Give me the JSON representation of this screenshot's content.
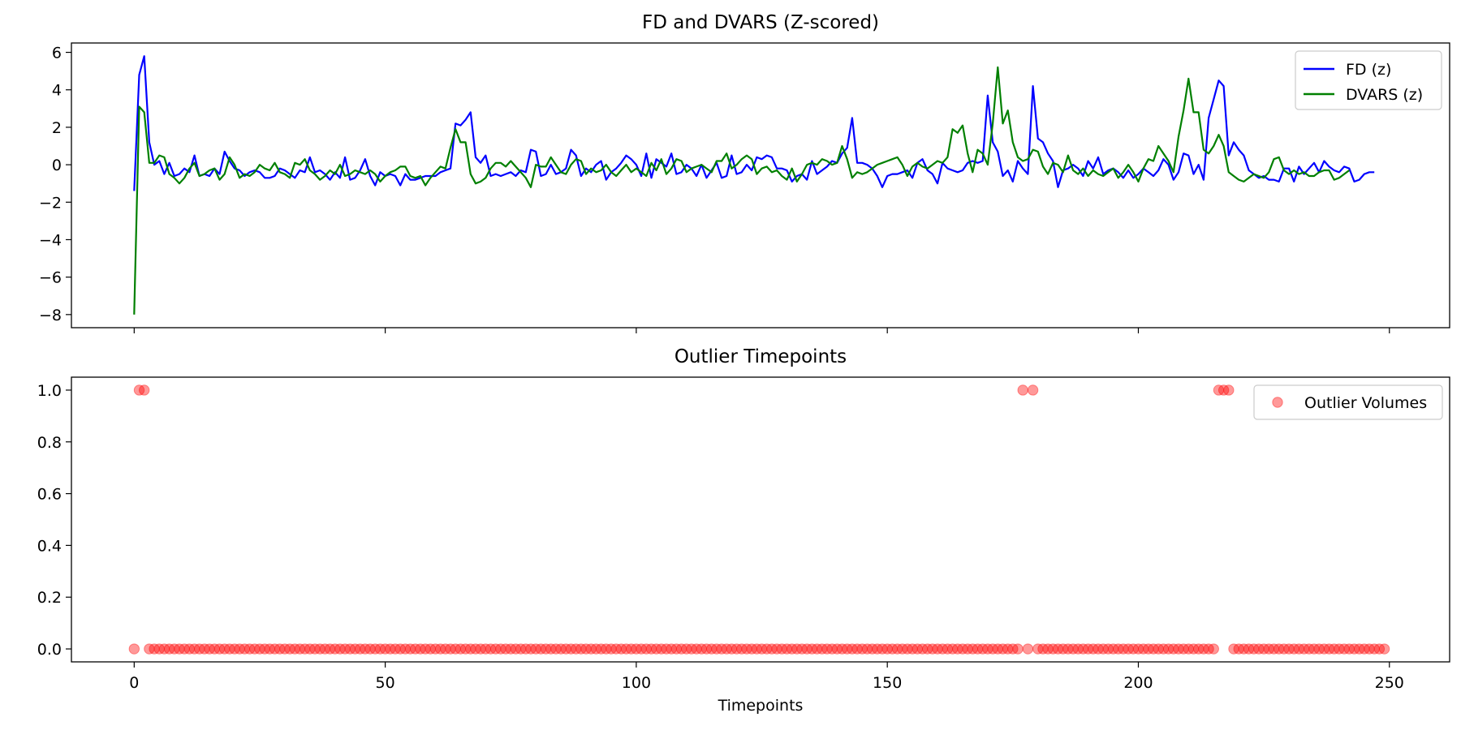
{
  "chart_data": [
    {
      "type": "line",
      "title": "FD and DVARS (Z-scored)",
      "xlabel": "",
      "ylabel": "",
      "xlim": [
        -12.5,
        262
      ],
      "ylim": [
        -8.7,
        6.5
      ],
      "yticks": [
        -8,
        -6,
        -4,
        -2,
        0,
        2,
        4,
        6
      ],
      "ytick_labels": [
        "−8",
        "−6",
        "−4",
        "−2",
        "0",
        "2",
        "4",
        "6"
      ],
      "xticks": [
        0,
        50,
        100,
        150,
        200,
        250
      ],
      "legend_position": "top-right",
      "x_start": 0,
      "x_step": 1,
      "series": [
        {
          "name": "FD (z)",
          "color": "#0000ff",
          "values": [
            -1.4,
            4.8,
            5.8,
            1.2,
            0.0,
            0.2,
            -0.5,
            0.1,
            -0.6,
            -0.5,
            -0.2,
            -0.4,
            0.5,
            -0.6,
            -0.5,
            -0.6,
            -0.2,
            -0.5,
            0.7,
            0.2,
            -0.2,
            -0.3,
            -0.6,
            -0.4,
            -0.3,
            -0.4,
            -0.7,
            -0.7,
            -0.6,
            -0.2,
            -0.3,
            -0.5,
            -0.7,
            -0.3,
            -0.4,
            0.4,
            -0.4,
            -0.3,
            -0.5,
            -0.8,
            -0.4,
            -0.7,
            0.4,
            -0.8,
            -0.7,
            -0.3,
            0.3,
            -0.6,
            -1.1,
            -0.4,
            -0.6,
            -0.5,
            -0.6,
            -1.1,
            -0.5,
            -0.8,
            -0.8,
            -0.7,
            -0.6,
            -0.6,
            -0.6,
            -0.4,
            -0.3,
            -0.2,
            2.2,
            2.1,
            2.4,
            2.8,
            0.4,
            0.1,
            0.5,
            -0.6,
            -0.5,
            -0.6,
            -0.5,
            -0.4,
            -0.6,
            -0.3,
            -0.4,
            0.8,
            0.7,
            -0.6,
            -0.5,
            0.0,
            -0.5,
            -0.4,
            -0.2,
            0.8,
            0.5,
            -0.6,
            -0.2,
            -0.4,
            0.0,
            0.2,
            -0.8,
            -0.4,
            -0.2,
            0.1,
            0.5,
            0.3,
            0.0,
            -0.6,
            0.6,
            -0.7,
            0.3,
            0.1,
            -0.1,
            0.6,
            -0.5,
            -0.4,
            0.0,
            -0.2,
            -0.6,
            0.0,
            -0.7,
            -0.3,
            0.1,
            -0.7,
            -0.6,
            0.5,
            -0.5,
            -0.4,
            0.0,
            -0.3,
            0.4,
            0.3,
            0.5,
            0.4,
            -0.2,
            -0.2,
            -0.3,
            -0.9,
            -0.6,
            -0.5,
            -0.8,
            0.2,
            -0.5,
            -0.3,
            -0.1,
            0.2,
            0.1,
            0.6,
            0.9,
            2.5,
            0.1,
            0.1,
            0.0,
            -0.2,
            -0.6,
            -1.2,
            -0.6,
            -0.5,
            -0.5,
            -0.4,
            -0.3,
            -0.7,
            0.1,
            0.3,
            -0.3,
            -0.5,
            -1.0,
            0.1,
            -0.2,
            -0.3,
            -0.4,
            -0.3,
            0.1,
            0.2,
            0.1,
            0.2,
            3.7,
            1.2,
            0.7,
            -0.6,
            -0.3,
            -0.9,
            0.2,
            -0.2,
            -0.5,
            4.2,
            1.4,
            1.2,
            0.6,
            0.2,
            -1.2,
            -0.3,
            -0.2,
            0.0,
            -0.2,
            -0.6,
            0.2,
            -0.2,
            0.4,
            -0.5,
            -0.3,
            -0.2,
            -0.4,
            -0.7,
            -0.3,
            -0.7,
            -0.5,
            -0.2,
            -0.4,
            -0.6,
            -0.3,
            0.3,
            0.0,
            -0.8,
            -0.4,
            0.6,
            0.5,
            -0.5,
            0.0,
            -0.8,
            2.5,
            3.5,
            4.5,
            4.2,
            0.5,
            1.2,
            0.8,
            0.5,
            -0.3,
            -0.5,
            -0.7,
            -0.6,
            -0.8,
            -0.8,
            -0.9,
            -0.2,
            -0.2,
            -0.9,
            -0.1,
            -0.5,
            -0.2,
            0.1,
            -0.4,
            0.2,
            -0.1,
            -0.3,
            -0.4,
            -0.1,
            -0.2,
            -0.9,
            -0.8,
            -0.5,
            -0.4,
            -0.4
          ],
          "display_values": "z-scored FD per timepoint"
        },
        {
          "name": "DVARS (z)",
          "color": "#008000",
          "values": [
            -8.0,
            3.1,
            2.8,
            0.1,
            0.1,
            0.5,
            0.4,
            -0.5,
            -0.7,
            -1.0,
            -0.7,
            -0.2,
            0.1,
            -0.6,
            -0.5,
            -0.3,
            -0.2,
            -0.8,
            -0.5,
            0.4,
            0.0,
            -0.7,
            -0.5,
            -0.6,
            -0.4,
            0.0,
            -0.2,
            -0.3,
            0.1,
            -0.4,
            -0.5,
            -0.7,
            0.1,
            0.0,
            0.3,
            -0.3,
            -0.5,
            -0.8,
            -0.6,
            -0.3,
            -0.5,
            0.0,
            -0.6,
            -0.5,
            -0.3,
            -0.4,
            -0.5,
            -0.3,
            -0.5,
            -0.9,
            -0.6,
            -0.4,
            -0.3,
            -0.1,
            -0.1,
            -0.6,
            -0.7,
            -0.6,
            -1.1,
            -0.7,
            -0.4,
            -0.1,
            -0.2,
            0.9,
            1.9,
            1.2,
            1.2,
            -0.5,
            -1.0,
            -0.9,
            -0.7,
            -0.2,
            0.1,
            0.1,
            -0.1,
            0.2,
            -0.1,
            -0.4,
            -0.7,
            -1.2,
            0.0,
            -0.1,
            -0.1,
            0.4,
            0.0,
            -0.4,
            -0.5,
            0.0,
            0.3,
            0.2,
            -0.5,
            -0.2,
            -0.4,
            -0.3,
            0.0,
            -0.4,
            -0.6,
            -0.3,
            0.0,
            -0.4,
            -0.2,
            -0.4,
            -0.6,
            0.1,
            -0.3,
            0.3,
            -0.5,
            -0.2,
            0.3,
            0.2,
            -0.4,
            -0.2,
            -0.1,
            0.0,
            -0.2,
            -0.4,
            0.2,
            0.2,
            0.6,
            -0.2,
            0.0,
            0.3,
            0.5,
            0.3,
            -0.5,
            -0.2,
            -0.1,
            -0.4,
            -0.3,
            -0.6,
            -0.8,
            -0.2,
            -0.9,
            -0.5,
            0.0,
            0.1,
            0.0,
            0.3,
            0.2,
            0.0,
            0.1,
            1.0,
            0.3,
            -0.7,
            -0.4,
            -0.5,
            -0.4,
            -0.2,
            0.0,
            0.1,
            0.2,
            0.3,
            0.4,
            0.0,
            -0.6,
            -0.1,
            0.1,
            -0.1,
            -0.2,
            0.0,
            0.2,
            0.1,
            0.4,
            1.9,
            1.7,
            2.1,
            0.6,
            -0.4,
            0.8,
            0.6,
            0.0,
            2.2,
            5.2,
            2.2,
            2.9,
            1.2,
            0.4,
            0.2,
            0.3,
            0.8,
            0.7,
            -0.1,
            -0.5,
            0.1,
            0.0,
            -0.4,
            0.5,
            -0.3,
            -0.5,
            -0.2,
            -0.6,
            -0.3,
            -0.5,
            -0.6,
            -0.4,
            -0.2,
            -0.7,
            -0.4,
            0.0,
            -0.4,
            -0.9,
            -0.2,
            0.3,
            0.2,
            1.0,
            0.6,
            0.2,
            -0.4,
            1.5,
            2.9,
            4.6,
            2.8,
            2.8,
            0.8,
            0.6,
            1.0,
            1.6,
            1.0,
            -0.4,
            -0.6,
            -0.8,
            -0.9,
            -0.7,
            -0.5,
            -0.6,
            -0.7,
            -0.4,
            0.3,
            0.4,
            -0.3,
            -0.5,
            -0.3,
            -0.5,
            -0.4,
            -0.6,
            -0.6,
            -0.4,
            -0.3,
            -0.3,
            -0.8,
            -0.7,
            -0.5,
            -0.3
          ],
          "display_values": "z-scored DVARS per timepoint"
        }
      ]
    },
    {
      "type": "scatter",
      "title": "Outlier Timepoints",
      "xlabel": "Timepoints",
      "ylabel": "",
      "xlim": [
        -12.5,
        262
      ],
      "ylim": [
        -0.05,
        1.05
      ],
      "yticks": [
        0.0,
        0.2,
        0.4,
        0.6,
        0.8,
        1.0
      ],
      "ytick_labels": [
        "0.0",
        "0.2",
        "0.4",
        "0.6",
        "0.8",
        "1.0"
      ],
      "xticks": [
        0,
        50,
        100,
        150,
        200,
        250
      ],
      "xtick_labels": [
        "0",
        "50",
        "100",
        "150",
        "200",
        "250"
      ],
      "legend_position": "top-right",
      "x_start": 0,
      "x_end": 249,
      "outlier_x": [
        1,
        2,
        177,
        179,
        216,
        217,
        218
      ],
      "series": [
        {
          "name": "Outlier Volumes",
          "color": "#ff0000",
          "alpha": 0.4
        }
      ]
    }
  ]
}
